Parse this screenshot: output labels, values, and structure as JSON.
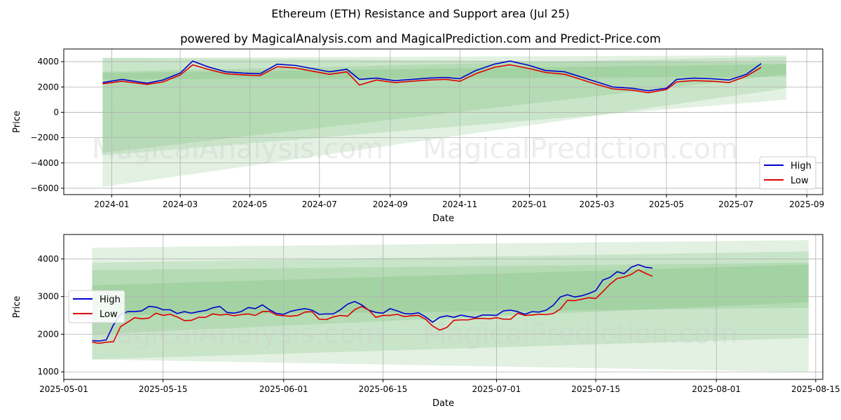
{
  "title": "Ethereum (ETH) Resistance and Support area (Jul 25)",
  "subtitle": "powered by MagicalAnalysis.com and MagicalPrediction.com and Predict-Price.com",
  "watermarks": [
    "MagicalAnalysis.com",
    "MagicalPrediction.com"
  ],
  "colors": {
    "high": "#0000cc",
    "low": "#dd0000",
    "band": "#4ca64c"
  },
  "chart_data": [
    {
      "type": "line",
      "xlabel": "Date",
      "ylabel": "Price",
      "ylim": [
        -6500,
        5000
      ],
      "xlim": [
        "2023-11-20",
        "2025-09-15"
      ],
      "grid": true,
      "legend": "lower-right",
      "x_ticks": [
        "2024-01",
        "2024-03",
        "2024-05",
        "2024-07",
        "2024-09",
        "2024-11",
        "2025-01",
        "2025-03",
        "2025-05",
        "2025-07",
        "2025-09"
      ],
      "y_ticks": [
        4000,
        2000,
        0,
        -2000,
        -4000,
        -6000
      ],
      "series": [
        {
          "name": "High",
          "x": [
            "2023-12-24",
            "2024-01-10",
            "2024-02-01",
            "2024-02-15",
            "2024-03-01",
            "2024-03-12",
            "2024-03-25",
            "2024-04-10",
            "2024-04-25",
            "2024-05-10",
            "2024-05-25",
            "2024-06-10",
            "2024-06-25",
            "2024-07-10",
            "2024-07-25",
            "2024-08-05",
            "2024-08-20",
            "2024-09-05",
            "2024-09-20",
            "2024-10-05",
            "2024-10-20",
            "2024-11-01",
            "2024-11-15",
            "2024-12-01",
            "2024-12-15",
            "2025-01-01",
            "2025-01-15",
            "2025-02-01",
            "2025-02-15",
            "2025-03-01",
            "2025-03-15",
            "2025-04-01",
            "2025-04-15",
            "2025-05-01",
            "2025-05-10",
            "2025-05-25",
            "2025-06-10",
            "2025-06-25",
            "2025-07-10",
            "2025-07-23"
          ],
          "values": [
            2350,
            2600,
            2300,
            2550,
            3100,
            4050,
            3600,
            3200,
            3100,
            3050,
            3800,
            3700,
            3450,
            3200,
            3400,
            2600,
            2700,
            2500,
            2600,
            2700,
            2750,
            2650,
            3300,
            3800,
            4050,
            3700,
            3300,
            3200,
            2800,
            2400,
            2000,
            1900,
            1700,
            1900,
            2600,
            2700,
            2650,
            2550,
            3000,
            3850
          ]
        },
        {
          "name": "Low",
          "x": [
            "2023-12-24",
            "2024-01-10",
            "2024-02-01",
            "2024-02-15",
            "2024-03-01",
            "2024-03-12",
            "2024-03-25",
            "2024-04-10",
            "2024-04-25",
            "2024-05-10",
            "2024-05-25",
            "2024-06-10",
            "2024-06-25",
            "2024-07-10",
            "2024-07-25",
            "2024-08-05",
            "2024-08-20",
            "2024-09-05",
            "2024-09-20",
            "2024-10-05",
            "2024-10-20",
            "2024-11-01",
            "2024-11-15",
            "2024-12-01",
            "2024-12-15",
            "2025-01-01",
            "2025-01-15",
            "2025-02-01",
            "2025-02-15",
            "2025-03-01",
            "2025-03-15",
            "2025-04-01",
            "2025-04-15",
            "2025-05-01",
            "2025-05-10",
            "2025-05-25",
            "2025-06-10",
            "2025-06-25",
            "2025-07-10",
            "2025-07-23"
          ],
          "values": [
            2250,
            2450,
            2200,
            2400,
            2950,
            3750,
            3400,
            3050,
            2950,
            2900,
            3600,
            3500,
            3250,
            3000,
            3200,
            2150,
            2550,
            2350,
            2450,
            2550,
            2600,
            2450,
            3050,
            3550,
            3750,
            3450,
            3150,
            3000,
            2600,
            2200,
            1850,
            1750,
            1550,
            1800,
            2400,
            2500,
            2450,
            2350,
            2850,
            3550
          ]
        }
      ],
      "bands": [
        {
          "x": [
            "2023-12-24",
            "2025-08-14"
          ],
          "upper": [
            4300,
            4500
          ],
          "lower": [
            -5900,
            1900
          ]
        },
        {
          "x": [
            "2023-12-24",
            "2025-08-14"
          ],
          "upper": [
            4300,
            3900
          ],
          "lower": [
            -3400,
            1000
          ]
        },
        {
          "x": [
            "2023-12-24",
            "2025-08-14"
          ],
          "upper": [
            3200,
            4400
          ],
          "lower": [
            -3200,
            3000
          ]
        },
        {
          "x": [
            "2023-12-24",
            "2025-08-14"
          ],
          "upper": [
            3100,
            3800
          ],
          "lower": [
            2600,
            2800
          ]
        }
      ]
    },
    {
      "type": "line",
      "xlabel": "Date",
      "ylabel": "Price",
      "ylim": [
        800,
        4650
      ],
      "xlim": [
        "2025-05-01",
        "2025-08-16"
      ],
      "grid": true,
      "legend": "center-left",
      "x_ticks": [
        "2025-05-01",
        "2025-05-15",
        "2025-06-01",
        "2025-06-15",
        "2025-07-01",
        "2025-07-15",
        "2025-08-01",
        "2025-08-15"
      ],
      "y_ticks": [
        4000,
        3000,
        2000,
        1000
      ],
      "series": [
        {
          "name": "High",
          "x": [
            "2025-05-05",
            "2025-05-06",
            "2025-05-07",
            "2025-05-08",
            "2025-05-09",
            "2025-05-10",
            "2025-05-11",
            "2025-05-12",
            "2025-05-13",
            "2025-05-14",
            "2025-05-15",
            "2025-05-16",
            "2025-05-17",
            "2025-05-18",
            "2025-05-19",
            "2025-05-20",
            "2025-05-21",
            "2025-05-22",
            "2025-05-23",
            "2025-05-24",
            "2025-05-25",
            "2025-05-26",
            "2025-05-27",
            "2025-05-28",
            "2025-05-29",
            "2025-05-30",
            "2025-05-31",
            "2025-06-01",
            "2025-06-02",
            "2025-06-03",
            "2025-06-04",
            "2025-06-05",
            "2025-06-06",
            "2025-06-07",
            "2025-06-08",
            "2025-06-09",
            "2025-06-10",
            "2025-06-11",
            "2025-06-12",
            "2025-06-13",
            "2025-06-14",
            "2025-06-15",
            "2025-06-16",
            "2025-06-17",
            "2025-06-18",
            "2025-06-19",
            "2025-06-20",
            "2025-06-21",
            "2025-06-22",
            "2025-06-23",
            "2025-06-24",
            "2025-06-25",
            "2025-06-26",
            "2025-06-27",
            "2025-06-28",
            "2025-06-29",
            "2025-06-30",
            "2025-07-01",
            "2025-07-02",
            "2025-07-03",
            "2025-07-04",
            "2025-07-05",
            "2025-07-06",
            "2025-07-07",
            "2025-07-08",
            "2025-07-09",
            "2025-07-10",
            "2025-07-11",
            "2025-07-12",
            "2025-07-13",
            "2025-07-14",
            "2025-07-15",
            "2025-07-16",
            "2025-07-17",
            "2025-07-18",
            "2025-07-19",
            "2025-07-20",
            "2025-07-21",
            "2025-07-22",
            "2025-07-23"
          ],
          "values": [
            1830,
            1820,
            1850,
            2250,
            2520,
            2600,
            2600,
            2620,
            2740,
            2720,
            2650,
            2650,
            2550,
            2600,
            2560,
            2600,
            2630,
            2700,
            2740,
            2580,
            2560,
            2600,
            2710,
            2680,
            2780,
            2650,
            2550,
            2530,
            2610,
            2650,
            2680,
            2640,
            2530,
            2540,
            2540,
            2650,
            2800,
            2870,
            2780,
            2640,
            2580,
            2560,
            2680,
            2620,
            2550,
            2540,
            2570,
            2460,
            2320,
            2450,
            2490,
            2450,
            2510,
            2470,
            2440,
            2510,
            2510,
            2500,
            2620,
            2640,
            2600,
            2530,
            2600,
            2590,
            2640,
            2770,
            2990,
            3050,
            2990,
            3020,
            3080,
            3160,
            3440,
            3510,
            3660,
            3610,
            3780,
            3850,
            3780,
            3760
          ]
        },
        {
          "name": "Low",
          "x": [
            "2025-05-05",
            "2025-05-06",
            "2025-05-07",
            "2025-05-08",
            "2025-05-09",
            "2025-05-10",
            "2025-05-11",
            "2025-05-12",
            "2025-05-13",
            "2025-05-14",
            "2025-05-15",
            "2025-05-16",
            "2025-05-17",
            "2025-05-18",
            "2025-05-19",
            "2025-05-20",
            "2025-05-21",
            "2025-05-22",
            "2025-05-23",
            "2025-05-24",
            "2025-05-25",
            "2025-05-26",
            "2025-05-27",
            "2025-05-28",
            "2025-05-29",
            "2025-05-30",
            "2025-05-31",
            "2025-06-01",
            "2025-06-02",
            "2025-06-03",
            "2025-06-04",
            "2025-06-05",
            "2025-06-06",
            "2025-06-07",
            "2025-06-08",
            "2025-06-09",
            "2025-06-10",
            "2025-06-11",
            "2025-06-12",
            "2025-06-13",
            "2025-06-14",
            "2025-06-15",
            "2025-06-16",
            "2025-06-17",
            "2025-06-18",
            "2025-06-19",
            "2025-06-20",
            "2025-06-21",
            "2025-06-22",
            "2025-06-23",
            "2025-06-24",
            "2025-06-25",
            "2025-06-26",
            "2025-06-27",
            "2025-06-28",
            "2025-06-29",
            "2025-06-30",
            "2025-07-01",
            "2025-07-02",
            "2025-07-03",
            "2025-07-04",
            "2025-07-05",
            "2025-07-06",
            "2025-07-07",
            "2025-07-08",
            "2025-07-09",
            "2025-07-10",
            "2025-07-11",
            "2025-07-12",
            "2025-07-13",
            "2025-07-14",
            "2025-07-15",
            "2025-07-16",
            "2025-07-17",
            "2025-07-18",
            "2025-07-19",
            "2025-07-20",
            "2025-07-21",
            "2025-07-22",
            "2025-07-23"
          ],
          "values": [
            1790,
            1760,
            1790,
            1800,
            2200,
            2320,
            2440,
            2410,
            2430,
            2560,
            2500,
            2530,
            2460,
            2360,
            2370,
            2450,
            2450,
            2540,
            2510,
            2530,
            2490,
            2520,
            2540,
            2500,
            2600,
            2610,
            2510,
            2490,
            2480,
            2500,
            2590,
            2600,
            2400,
            2390,
            2460,
            2500,
            2480,
            2650,
            2740,
            2640,
            2450,
            2500,
            2500,
            2530,
            2470,
            2490,
            2500,
            2400,
            2220,
            2110,
            2180,
            2370,
            2380,
            2380,
            2420,
            2420,
            2410,
            2440,
            2400,
            2400,
            2560,
            2500,
            2510,
            2530,
            2520,
            2550,
            2670,
            2900,
            2890,
            2930,
            2970,
            2950,
            3130,
            3330,
            3480,
            3520,
            3590,
            3710,
            3620,
            3540
          ]
        }
      ],
      "bands": [
        {
          "x": [
            "2025-05-05",
            "2025-08-14"
          ],
          "upper": [
            4300,
            4500
          ],
          "lower": [
            1330,
            1900
          ]
        },
        {
          "x": [
            "2025-05-05",
            "2025-08-14"
          ],
          "upper": [
            3900,
            4200
          ],
          "lower": [
            1330,
            1000
          ]
        },
        {
          "x": [
            "2025-05-05",
            "2025-08-14"
          ],
          "upper": [
            3700,
            3900
          ],
          "lower": [
            2500,
            2700
          ]
        },
        {
          "x": [
            "2025-05-05",
            "2025-08-14"
          ],
          "upper": [
            3300,
            3850
          ],
          "lower": [
            2000,
            2850
          ]
        }
      ]
    }
  ]
}
